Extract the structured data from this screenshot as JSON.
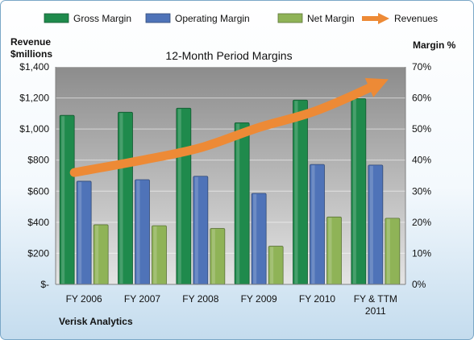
{
  "chart_data": {
    "type": "bar",
    "title": "12-Month Period Margins",
    "company": "Verisk Analytics",
    "left_axis_label_line1": "Revenue",
    "left_axis_label_line2": "$millions",
    "right_axis_label": "Margin %",
    "categories": [
      "FY 2006",
      "FY 2007",
      "FY 2008",
      "FY 2009",
      "FY 2010",
      "FY & TTM 2011"
    ],
    "left_axis": {
      "min": 0,
      "max": 1400,
      "step": 200,
      "tick_labels": [
        "$-",
        "$200",
        "$400",
        "$600",
        "$800",
        "$1,000",
        "$1,200",
        "$1,400"
      ]
    },
    "right_axis": {
      "min": 0,
      "max": 70,
      "step": 10,
      "tick_labels": [
        "0%",
        "10%",
        "20%",
        "30%",
        "40%",
        "50%",
        "60%",
        "70%"
      ]
    },
    "series": [
      {
        "name": "Gross Margin",
        "type": "bar",
        "axis": "right",
        "unit": "%",
        "color": "#1f8a4c",
        "values": [
          54.4,
          55.4,
          56.7,
          52.0,
          59.3,
          59.8
        ]
      },
      {
        "name": "Operating Margin",
        "type": "bar",
        "axis": "right",
        "unit": "%",
        "color": "#4f73b8",
        "values": [
          33.2,
          33.7,
          34.8,
          29.3,
          38.6,
          38.4
        ]
      },
      {
        "name": "Net Margin",
        "type": "bar",
        "axis": "right",
        "unit": "%",
        "color": "#8fb357",
        "values": [
          19.2,
          18.9,
          18.0,
          12.3,
          21.7,
          21.3
        ]
      },
      {
        "name": "Revenues",
        "type": "arrow",
        "axis": "left",
        "unit": "$millions",
        "color": "#ed8a36",
        "values": [
          720,
          800,
          880,
          1010,
          1120,
          1320
        ]
      }
    ],
    "grid": true,
    "legend_position": "top"
  }
}
